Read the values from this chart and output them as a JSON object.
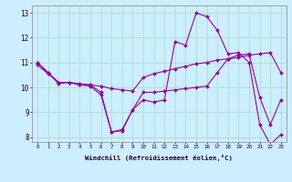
{
  "bg_color": "#cceeff",
  "grid_color": "#aaddcc",
  "line_color": "#990099",
  "x_min": 0,
  "x_max": 23,
  "y_min": 8,
  "y_max": 13,
  "xlabel": "Windchill (Refroidissement éolien,°C)",
  "line1_y": [
    11.0,
    10.6,
    10.2,
    10.2,
    10.1,
    10.1,
    9.8,
    8.2,
    8.3,
    9.1,
    9.5,
    9.4,
    9.5,
    11.85,
    11.7,
    13.0,
    12.85,
    12.3,
    11.35,
    11.4,
    11.0,
    8.5,
    7.7,
    8.1
  ],
  "line2_y": [
    10.9,
    10.55,
    10.2,
    10.2,
    10.15,
    10.1,
    10.05,
    9.95,
    9.9,
    9.85,
    10.4,
    10.55,
    10.65,
    10.75,
    10.85,
    10.95,
    11.0,
    11.1,
    11.15,
    11.2,
    11.3,
    11.35,
    11.4,
    10.6
  ],
  "line3_y": [
    11.0,
    10.6,
    10.15,
    10.2,
    10.1,
    10.05,
    9.7,
    8.2,
    8.25,
    9.1,
    9.8,
    9.8,
    9.85,
    9.9,
    9.95,
    10.0,
    10.05,
    10.6,
    11.15,
    11.3,
    11.35,
    9.6,
    8.5,
    9.5
  ]
}
